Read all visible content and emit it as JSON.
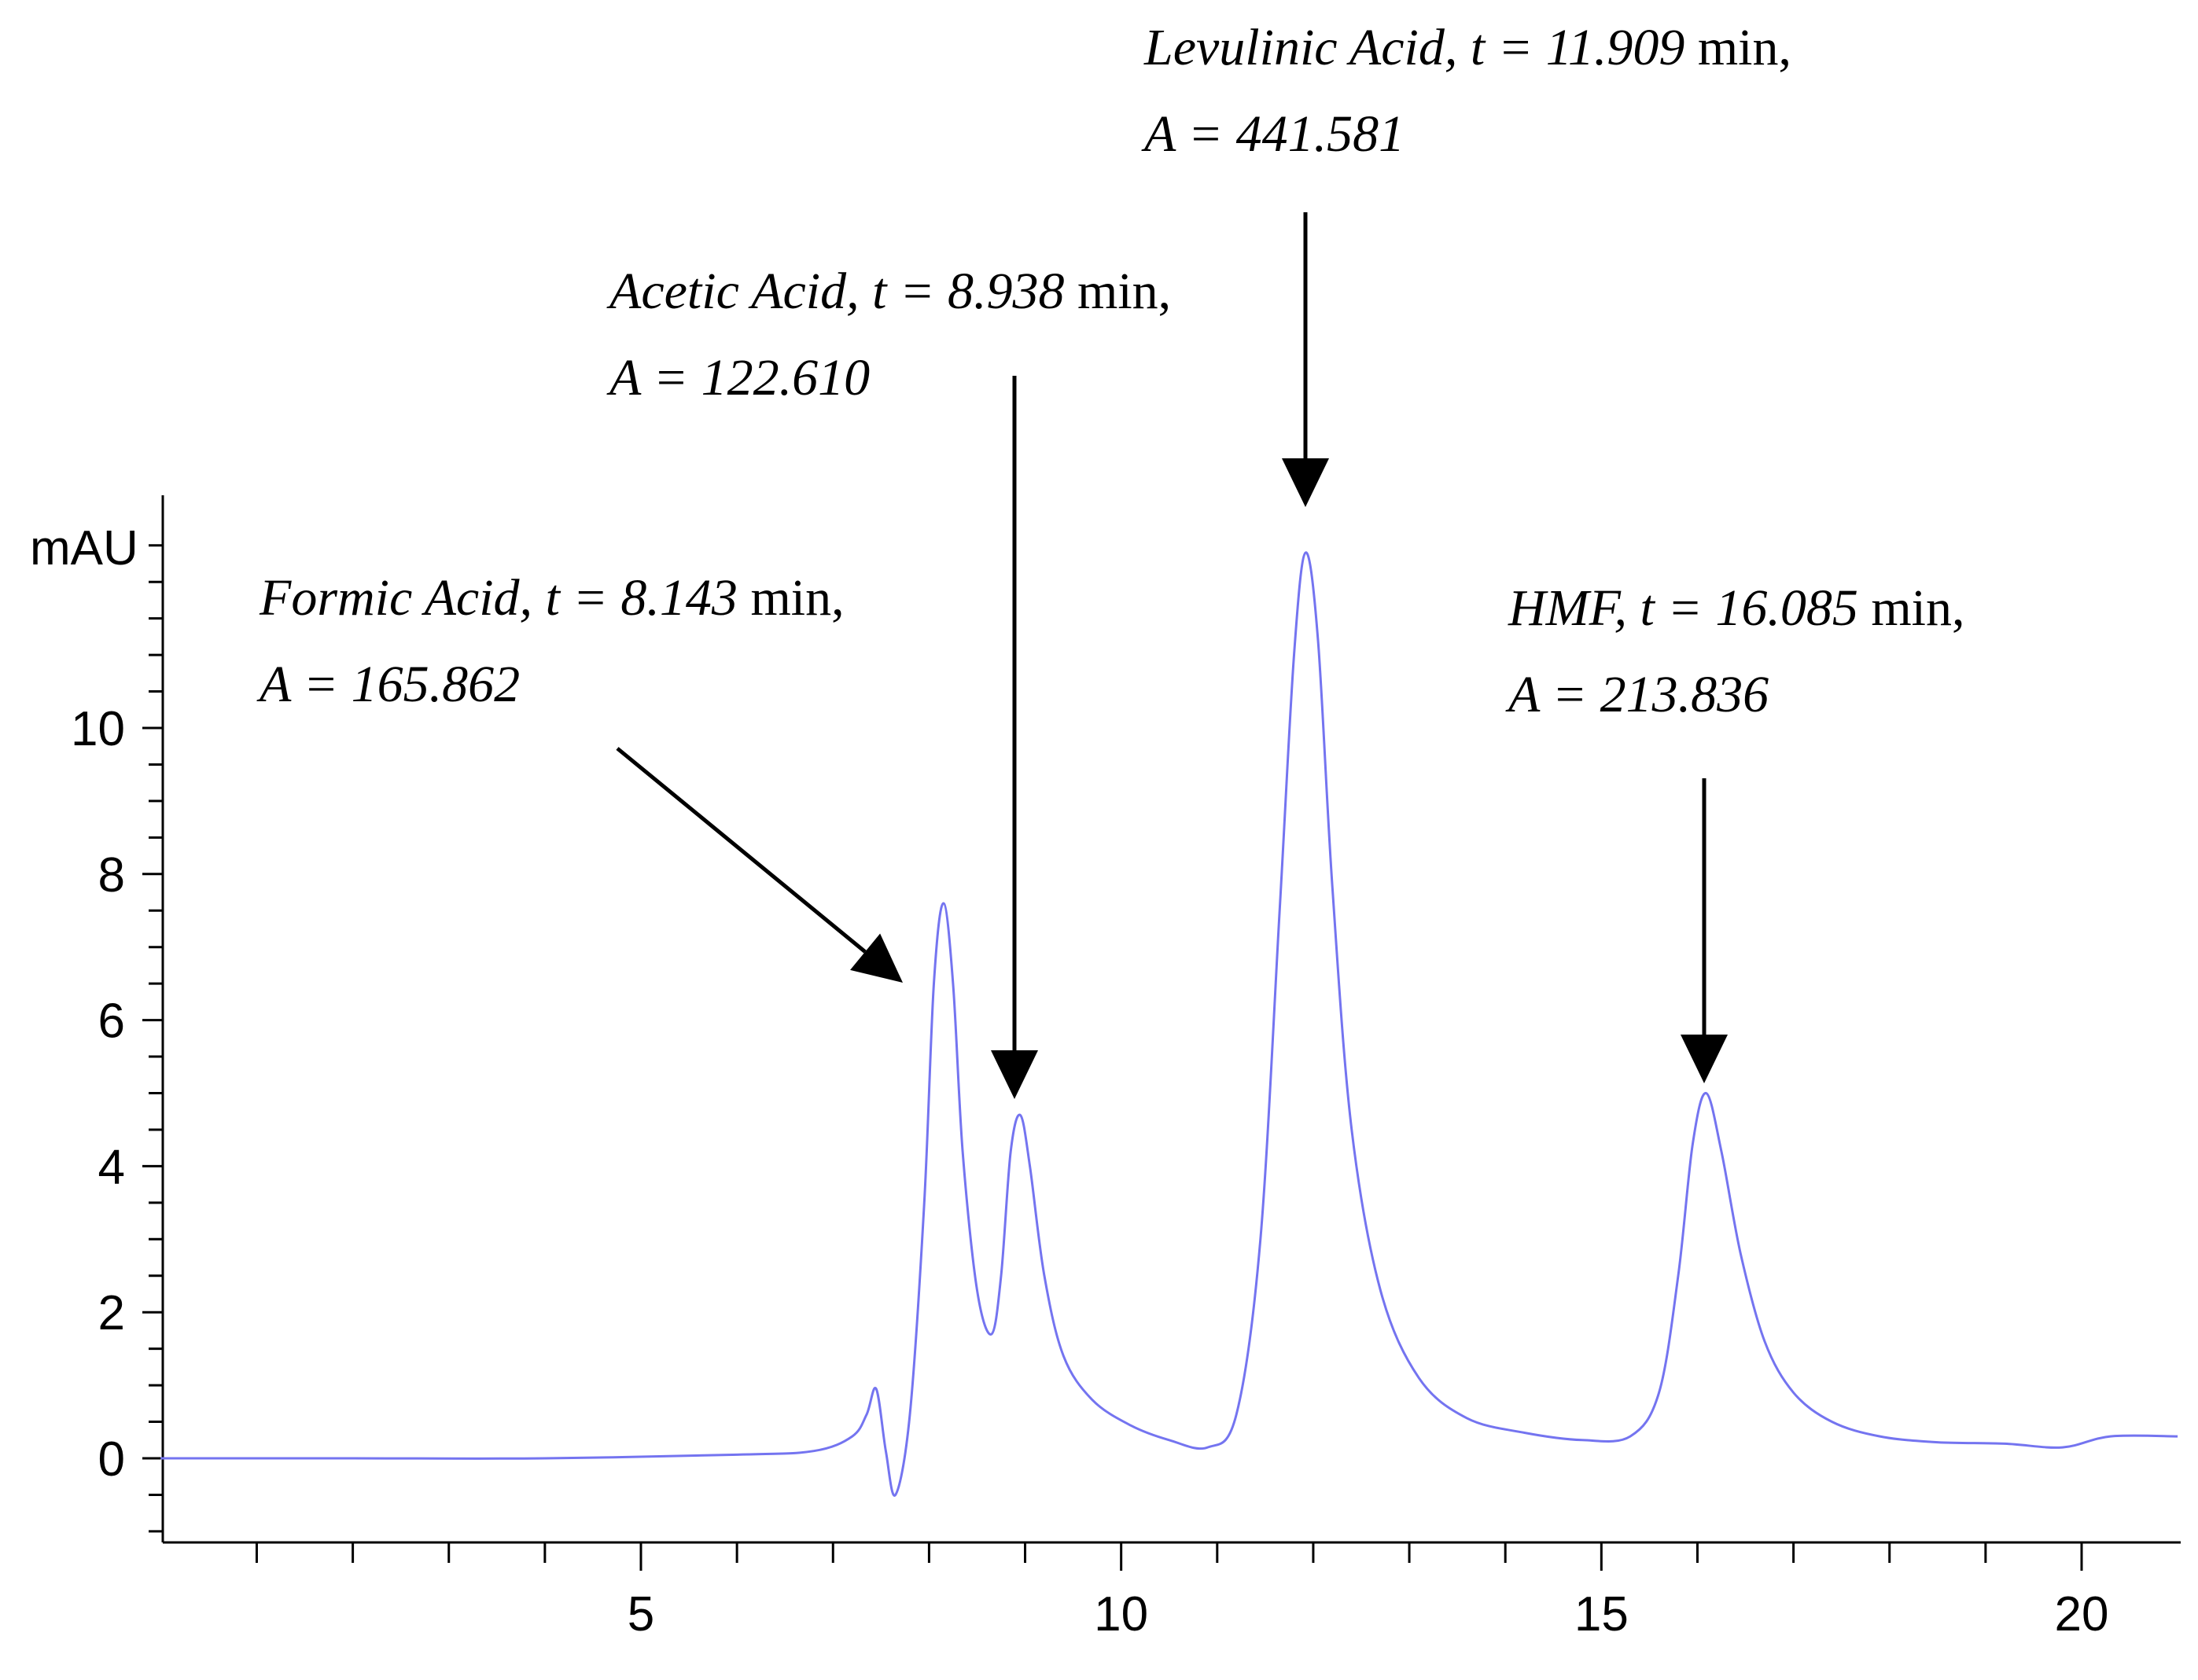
{
  "chart_data": {
    "type": "line",
    "title": "",
    "xlabel": "",
    "ylabel": "mAU",
    "xlim": [
      0,
      21
    ],
    "ylim": [
      -1.05,
      13.2
    ],
    "x_ticks": [
      5,
      10,
      15,
      20
    ],
    "y_ticks": [
      0,
      2,
      4,
      6,
      8,
      10
    ],
    "grid": false,
    "legend": "none",
    "line_color": "#7474f0",
    "series": [
      {
        "x": [
          0,
          2,
          4,
          6,
          6.8,
          7.2,
          7.35,
          7.45,
          7.55,
          7.65,
          7.8,
          7.95,
          8.05,
          8.15,
          8.25,
          8.35,
          8.5,
          8.65,
          8.75,
          8.85,
          8.95,
          9.05,
          9.2,
          9.4,
          9.7,
          10.1,
          10.5,
          10.9,
          11.2,
          11.45,
          11.65,
          11.8,
          11.92,
          12.05,
          12.2,
          12.4,
          12.7,
          13.1,
          13.6,
          14.2,
          14.8,
          15.3,
          15.6,
          15.8,
          15.95,
          16.09,
          16.25,
          16.45,
          16.7,
          17.0,
          17.4,
          17.9,
          18.5,
          19.2,
          19.8,
          20.3,
          21.0
        ],
        "y": [
          0.0,
          0.0,
          0.0,
          0.05,
          0.1,
          0.3,
          0.6,
          0.95,
          0.1,
          -0.5,
          0.6,
          3.5,
          6.5,
          7.6,
          6.5,
          4.2,
          2.3,
          1.7,
          2.5,
          4.2,
          4.7,
          4.0,
          2.5,
          1.4,
          0.8,
          0.45,
          0.25,
          0.15,
          0.6,
          3.0,
          7.5,
          11.0,
          12.4,
          11.2,
          7.8,
          4.5,
          2.3,
          1.1,
          0.55,
          0.35,
          0.25,
          0.3,
          0.9,
          2.5,
          4.3,
          5.0,
          4.2,
          2.8,
          1.6,
          0.9,
          0.5,
          0.3,
          0.22,
          0.2,
          0.15,
          0.3,
          0.3
        ]
      }
    ],
    "annotations": [
      {
        "compound": "Formic Acid,",
        "t_label": "t = 8.143",
        "t_unit": "min,",
        "area": "A = 165.862",
        "x": 8.143,
        "peak": 7.6
      },
      {
        "compound": "Acetic Acid,",
        "t_label": "t = 8.938",
        "t_unit": "min,",
        "area": "A = 122.610",
        "x": 8.938,
        "peak": 4.7
      },
      {
        "compound": "Levulinic Acid,",
        "t_label": "t = 11.909",
        "t_unit": "min,",
        "area": "A = 441.581",
        "x": 11.909,
        "peak": 12.4
      },
      {
        "compound": "HMF,",
        "t_label": "t = 16.085",
        "t_unit": "min,",
        "area": "A = 213.836",
        "x": 16.085,
        "peak": 5.0
      }
    ]
  }
}
